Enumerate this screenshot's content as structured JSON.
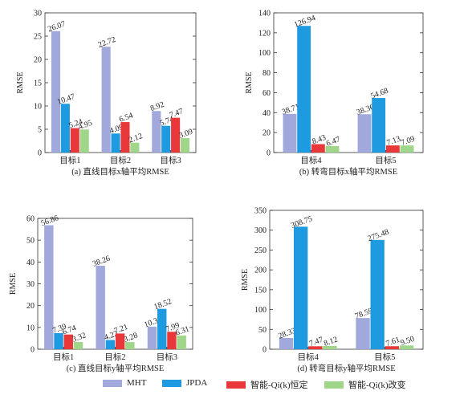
{
  "legend": [
    {
      "label": "MHT",
      "color": "#a0a8dc"
    },
    {
      "label": "JPDA",
      "color": "#1e9be0"
    },
    {
      "label": "智能-Qi(k)恒定",
      "color": "#e8383a"
    },
    {
      "label": "智能-Qi(k)改变",
      "color": "#9fd68a"
    }
  ],
  "chart_data": [
    {
      "type": "bar",
      "caption": "(a) 直线目标x轴平均RMSE",
      "ylabel": "RMSE",
      "ylim": [
        0,
        30
      ],
      "yticks": [
        0,
        5,
        10,
        15,
        20,
        25,
        30
      ],
      "categories": [
        "目标1",
        "目标2",
        "目标3"
      ],
      "series": [
        {
          "name": "MHT",
          "values": [
            26.07,
            22.72,
            8.92
          ]
        },
        {
          "name": "JPDA",
          "values": [
            10.47,
            4.09,
            5.74
          ]
        },
        {
          "name": "智能-Qi(k)恒定",
          "values": [
            5.24,
            6.54,
            7.47
          ]
        },
        {
          "name": "智能-Qi(k)改变",
          "values": [
            4.95,
            2.12,
            3.09
          ]
        }
      ]
    },
    {
      "type": "bar",
      "caption": "(b) 转弯目标x轴平均RMSE",
      "ylabel": "RMSE",
      "ylim": [
        0,
        140
      ],
      "yticks": [
        0,
        20,
        40,
        60,
        80,
        100,
        120,
        140
      ],
      "categories": [
        "目标4",
        "目标5"
      ],
      "series": [
        {
          "name": "MHT",
          "values": [
            38.71,
            38.36
          ]
        },
        {
          "name": "JPDA",
          "values": [
            126.94,
            54.68
          ]
        },
        {
          "name": "智能-Qi(k)恒定",
          "values": [
            8.43,
            7.13
          ]
        },
        {
          "name": "智能-Qi(k)改变",
          "values": [
            6.47,
            7.09
          ]
        }
      ]
    },
    {
      "type": "bar",
      "caption": "(c) 直线目标y轴平均RMSE",
      "ylabel": "RMSE",
      "ylim": [
        0,
        60
      ],
      "yticks": [
        0,
        10,
        20,
        30,
        40,
        50,
        60
      ],
      "categories": [
        "目标1",
        "目标2",
        "目标3"
      ],
      "series": [
        {
          "name": "MHT",
          "values": [
            56.86,
            38.26,
            10.34
          ]
        },
        {
          "name": "JPDA",
          "values": [
            7.39,
            4.22,
            18.52
          ]
        },
        {
          "name": "智能-Qi(k)恒定",
          "values": [
            6.74,
            7.21,
            7.99
          ]
        },
        {
          "name": "智能-Qi(k)改变",
          "values": [
            3.32,
            3.28,
            6.31
          ]
        }
      ]
    },
    {
      "type": "bar",
      "caption": "(d) 转弯目标y轴平均RMSE",
      "ylabel": "RMSE",
      "ylim": [
        0,
        350
      ],
      "yticks": [
        0,
        50,
        100,
        150,
        200,
        250,
        300,
        350
      ],
      "categories": [
        "目标4",
        "目标5"
      ],
      "series": [
        {
          "name": "MHT",
          "values": [
            28.33,
            78.59
          ]
        },
        {
          "name": "JPDA",
          "values": [
            308.75,
            275.48
          ]
        },
        {
          "name": "智能-Qi(k)恒定",
          "values": [
            7.47,
            7.61
          ]
        },
        {
          "name": "智能-Qi(k)改变",
          "values": [
            8.12,
            9.5
          ]
        }
      ]
    }
  ]
}
